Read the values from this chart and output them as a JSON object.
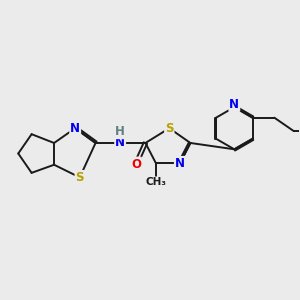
{
  "background_color": "#ebebeb",
  "bond_color": "#1a1a1a",
  "bond_width": 1.4,
  "atom_colors": {
    "N": "#0000ee",
    "S": "#b8a000",
    "O": "#ee0000",
    "H": "#608080",
    "C": "#1a1a1a"
  },
  "font_size": 8.5,
  "figsize": [
    3.0,
    3.0
  ],
  "dpi": 100
}
